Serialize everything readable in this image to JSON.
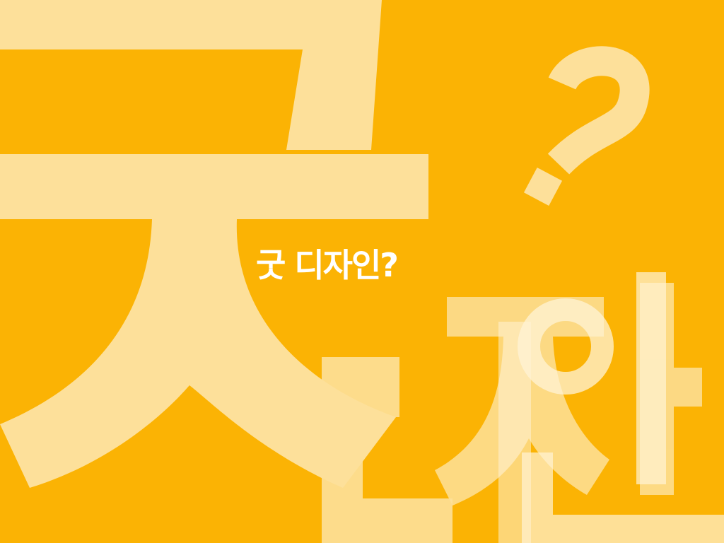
{
  "slide": {
    "title": "굿 디자인?",
    "background_color": "#fbb304",
    "decoration_color": "#fde09a",
    "decoration_light_color": "#fff3d6",
    "text_color": "#ffffff",
    "decorations": [
      "giant-geut-glyph",
      "question-mark-icon",
      "giant-di-glyph",
      "giant-ja-glyph",
      "giant-in-glyph"
    ]
  }
}
